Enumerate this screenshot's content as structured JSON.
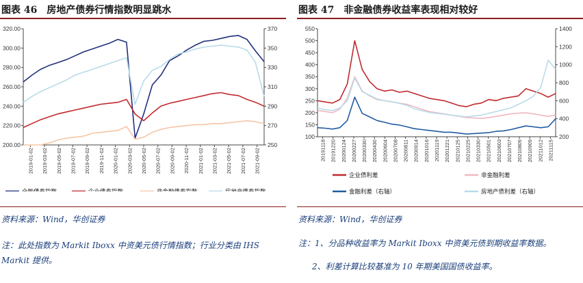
{
  "panel1": {
    "title_num": "图表 46",
    "title": "房地产债券行情指数明显跳水",
    "source": "资料来源：Wind，华创证券",
    "note": "注：此处指数为 Markit Iboxx 中资美元债行情指数；行业分类由 IHS Markit 提供。"
  },
  "panel2": {
    "title_num": "图表 47",
    "title": "非金融债券收益率表现相对较好",
    "source": "资料来源：Wind，华创证券",
    "note1": "注：1、分品种收益率为 Markit Iboxx 中资美元债到期收益率数据。",
    "note2": "2、利差计算比较基准为 10 年期美国国债收益率。"
  },
  "chart_data": [
    {
      "type": "line",
      "x_labels": [
        "2019-01-02",
        "2019-03-02",
        "2019-05-02",
        "2019-07-02",
        "2019-09-02",
        "2019-11-02",
        "2020-01-02",
        "2020-03-02",
        "2020-05-02",
        "2020-07-02",
        "2020-09-02",
        "2020-11-02",
        "2021-01-02",
        "2021-03-02",
        "2021-05-02",
        "2021-07-02",
        "2021-09-02"
      ],
      "ylim": [
        200,
        320
      ],
      "yticks": [
        "200.00",
        "220.00",
        "240.00",
        "260.00",
        "280.00",
        "300.00",
        "320.00"
      ],
      "y2lim": [
        250,
        370
      ],
      "y2ticks": [
        "250",
        "270",
        "290",
        "310",
        "330",
        "350",
        "370"
      ],
      "series": [
        {
          "name": "全融债券指数",
          "color": "#1f2f7a",
          "axis": "left",
          "values": [
            265,
            272,
            278,
            282,
            285,
            288,
            292,
            296,
            299,
            302,
            305,
            309,
            306,
            207,
            232,
            262,
            272,
            287,
            292,
            298,
            303,
            307,
            308,
            310,
            312,
            313,
            309,
            297,
            286
          ]
        },
        {
          "name": "企业债券指数",
          "color": "#c0282c",
          "axis": "left",
          "values": [
            218,
            222,
            226,
            229,
            232,
            234,
            236,
            238,
            240,
            242,
            243,
            244,
            247,
            232,
            225,
            233,
            240,
            243,
            245,
            247,
            249,
            251,
            253,
            254,
            252,
            251,
            247,
            244,
            240
          ]
        },
        {
          "name": "非金融债券指数",
          "color": "#f5c6a5",
          "axis": "left",
          "values": [
            192,
            196,
            199,
            202,
            205,
            207,
            208,
            209,
            212,
            213,
            214,
            215,
            219,
            206,
            208,
            213,
            216,
            218,
            219,
            220,
            221,
            221,
            222,
            222,
            223,
            224,
            225,
            224,
            222
          ]
        },
        {
          "name": "房地产债券指数",
          "color": "#b8dbe8",
          "axis": "right",
          "values": [
            294,
            300,
            305,
            309,
            313,
            317,
            322,
            325,
            328,
            331,
            334,
            337,
            340,
            292,
            316,
            327,
            331,
            338,
            344,
            346,
            349,
            351,
            352,
            353,
            352,
            351,
            348,
            335,
            300
          ]
        }
      ]
    },
    {
      "type": "line",
      "x_labels": [
        "20191118",
        "20191220",
        "20200124",
        "20200227",
        "20200330",
        "20200430",
        "20200604",
        "20200708",
        "20200811",
        "20200914",
        "20201016",
        "20201119",
        "20201221",
        "20210125",
        "20210225",
        "20210330",
        "20210501",
        "20210603",
        "20210707",
        "20210809",
        "20210909",
        "20211012",
        "20211115"
      ],
      "ylim": [
        100,
        550
      ],
      "yticks": [
        "100",
        "150",
        "200",
        "250",
        "300",
        "350",
        "400",
        "450",
        "500",
        "550"
      ],
      "y2lim": [
        200,
        1400
      ],
      "y2ticks": [
        "200",
        "400",
        "600",
        "800",
        "1000",
        "1200",
        "1400"
      ],
      "series": [
        {
          "name": "企业债利差",
          "color": "#c0282c",
          "axis": "left",
          "values": [
            250,
            245,
            240,
            255,
            320,
            500,
            380,
            330,
            300,
            290,
            295,
            285,
            290,
            280,
            270,
            260,
            255,
            250,
            240,
            230,
            225,
            235,
            240,
            255,
            250,
            260,
            265,
            270,
            300,
            290,
            280,
            265,
            280
          ]
        },
        {
          "name": "非金融利差",
          "color": "#f0b8c0",
          "axis": "left",
          "values": [
            210,
            205,
            200,
            215,
            260,
            350,
            290,
            270,
            255,
            250,
            245,
            240,
            235,
            225,
            215,
            205,
            200,
            195,
            190,
            185,
            180,
            178,
            176,
            180,
            185,
            190,
            195,
            198,
            200,
            195,
            190,
            185,
            190
          ]
        },
        {
          "name": "金融利差（右轴）",
          "color": "#1f5aa0",
          "axis": "right",
          "values": [
            300,
            295,
            285,
            300,
            380,
            640,
            460,
            420,
            380,
            360,
            340,
            330,
            310,
            290,
            280,
            270,
            260,
            250,
            250,
            240,
            230,
            235,
            240,
            245,
            260,
            265,
            280,
            300,
            320,
            310,
            300,
            310,
            400
          ]
        },
        {
          "name": "房地产债利差（右轴）",
          "color": "#b8dbe8",
          "axis": "right",
          "values": [
            520,
            500,
            490,
            520,
            600,
            850,
            700,
            660,
            620,
            600,
            590,
            570,
            550,
            510,
            490,
            470,
            460,
            450,
            440,
            430,
            420,
            430,
            440,
            460,
            480,
            500,
            520,
            560,
            600,
            650,
            750,
            1050,
            950
          ]
        }
      ]
    }
  ]
}
